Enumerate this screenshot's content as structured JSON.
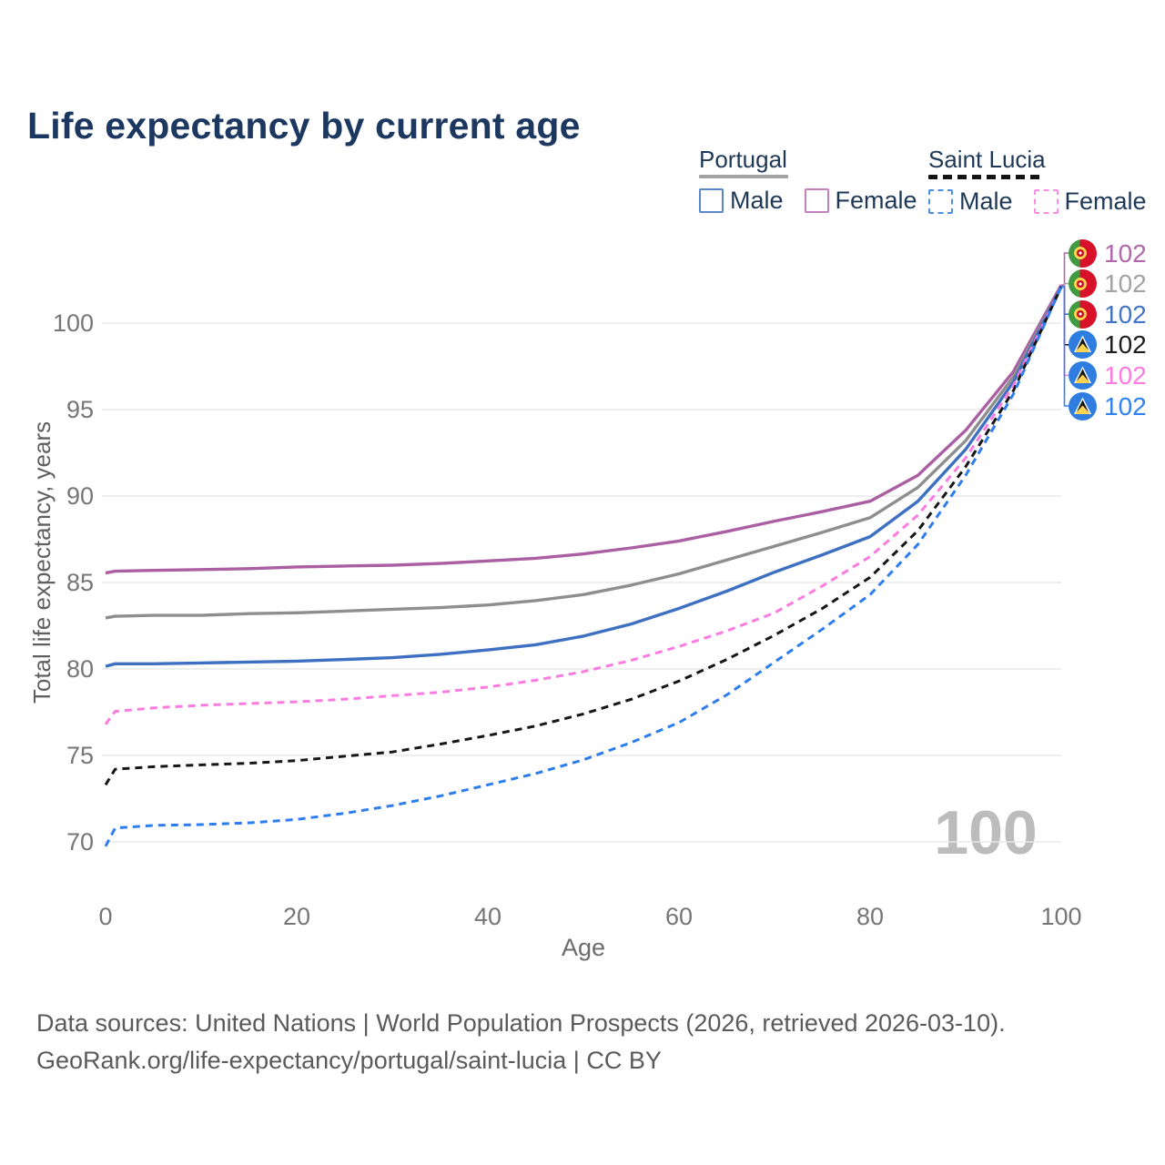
{
  "header": {
    "title": "Life expectancy by current age"
  },
  "legend": {
    "portugal": {
      "label": "Portugal",
      "male_label": "Male",
      "female_label": "Female"
    },
    "saint_lucia": {
      "label": "Saint Lucia",
      "male_label": "Male",
      "female_label": "Female"
    }
  },
  "chart_data": {
    "type": "line",
    "title": "Life expectancy by current age",
    "xlabel": "Age",
    "ylabel": "Total life expectancy, years",
    "xlim": [
      0,
      100
    ],
    "ylim": [
      68.8,
      103
    ],
    "x_ticks": [
      0,
      20,
      40,
      60,
      80,
      100
    ],
    "y_ticks": [
      70,
      75,
      80,
      85,
      90,
      95,
      100
    ],
    "grid": "horizontal",
    "legend_position": "top-right",
    "age_counter_watermark": "100",
    "ages": [
      0,
      1,
      5,
      10,
      15,
      20,
      25,
      30,
      35,
      40,
      45,
      50,
      55,
      60,
      65,
      70,
      75,
      80,
      85,
      90,
      95,
      100
    ],
    "series": [
      {
        "id": "portugal-female",
        "name": "Portugal Female",
        "country": "Portugal",
        "sex": "Female",
        "color": "#ab5fa3",
        "dashed": false,
        "values": [
          85.55,
          85.65,
          85.7,
          85.75,
          85.8,
          85.9,
          85.95,
          86.0,
          86.1,
          86.25,
          86.4,
          86.65,
          87.0,
          87.4,
          87.95,
          88.55,
          89.1,
          89.7,
          91.2,
          93.8,
          97.2,
          102.2
        ]
      },
      {
        "id": "portugal-total",
        "name": "Portugal",
        "country": "Portugal",
        "sex": "All",
        "color": "#8e8e8e",
        "dashed": false,
        "values": [
          82.95,
          83.05,
          83.1,
          83.1,
          83.2,
          83.25,
          83.35,
          83.45,
          83.55,
          83.7,
          83.95,
          84.3,
          84.85,
          85.5,
          86.3,
          87.1,
          87.9,
          88.75,
          90.5,
          93.2,
          96.9,
          102.1
        ]
      },
      {
        "id": "portugal-male",
        "name": "Portugal Male",
        "country": "Portugal",
        "sex": "Male",
        "color": "#3e70c2",
        "dashed": false,
        "values": [
          80.15,
          80.3,
          80.3,
          80.35,
          80.4,
          80.45,
          80.55,
          80.65,
          80.85,
          81.1,
          81.4,
          81.9,
          82.6,
          83.5,
          84.5,
          85.6,
          86.6,
          87.65,
          89.7,
          92.7,
          96.6,
          102.1
        ]
      },
      {
        "id": "saint-lucia-female",
        "name": "Saint Lucia Female",
        "country": "Saint Lucia",
        "sex": "Female",
        "color": "#fb7be0",
        "dashed": true,
        "values": [
          76.8,
          77.55,
          77.75,
          77.9,
          78.0,
          78.1,
          78.25,
          78.45,
          78.65,
          78.95,
          79.35,
          79.85,
          80.5,
          81.3,
          82.2,
          83.25,
          84.8,
          86.5,
          88.9,
          92.2,
          96.4,
          102.1
        ]
      },
      {
        "id": "saint-lucia-total",
        "name": "Saint Lucia",
        "country": "Saint Lucia",
        "sex": "All",
        "color": "#161616",
        "dashed": true,
        "values": [
          73.3,
          74.2,
          74.35,
          74.45,
          74.55,
          74.7,
          74.95,
          75.2,
          75.65,
          76.15,
          76.7,
          77.4,
          78.25,
          79.3,
          80.55,
          81.95,
          83.5,
          85.3,
          88.0,
          91.7,
          96.1,
          102.1
        ]
      },
      {
        "id": "saint-lucia-male",
        "name": "Saint Lucia Male",
        "country": "Saint Lucia",
        "sex": "Male",
        "color": "#2e7ded",
        "dashed": true,
        "values": [
          69.75,
          70.8,
          70.95,
          71.0,
          71.1,
          71.3,
          71.65,
          72.1,
          72.65,
          73.3,
          73.95,
          74.75,
          75.75,
          76.9,
          78.5,
          80.4,
          82.3,
          84.3,
          87.2,
          91.2,
          95.9,
          102.1
        ]
      }
    ],
    "end_labels": [
      {
        "series_index": 0,
        "value": "102",
        "color": "#b267a9",
        "flag": "portugal-flag",
        "name": "Portugal Female"
      },
      {
        "series_index": 1,
        "value": "102",
        "color": "#a2a2a2",
        "flag": "portugal-flag",
        "name": "Portugal"
      },
      {
        "series_index": 2,
        "value": "102",
        "color": "#4374c6",
        "flag": "portugal-flag",
        "name": "Portugal Male"
      },
      {
        "series_index": 4,
        "value": "102",
        "color": "#1c1c1c",
        "flag": "saint-lucia-flag",
        "name": "Saint Lucia"
      },
      {
        "series_index": 3,
        "value": "102",
        "color": "#fb7be0",
        "flag": "saint-lucia-flag",
        "name": "Saint Lucia Female"
      },
      {
        "series_index": 5,
        "value": "102",
        "color": "#3181ee",
        "flag": "saint-lucia-flag",
        "name": "Saint Lucia Male"
      }
    ]
  },
  "footer": {
    "line1": "Data sources: United Nations | World Population Prospects (2026, retrieved 2026-03-10).",
    "line2": "GeoRank.org/life-expectancy/portugal/saint-lucia | CC BY"
  }
}
